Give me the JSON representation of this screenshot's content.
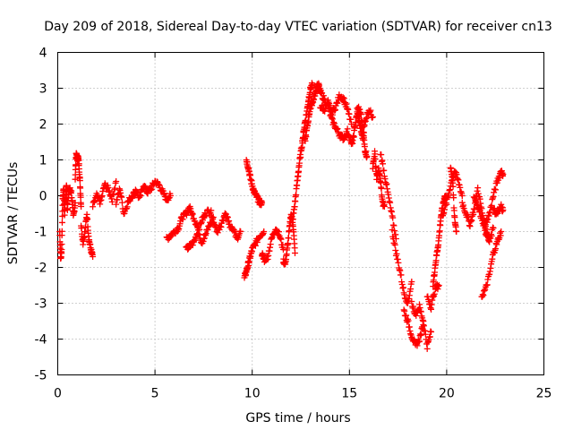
{
  "chart_data": {
    "type": "scatter",
    "title": "Day 209 of 2018, Sidereal Day-to-day VTEC variation (SDTVAR) for receiver cn13",
    "xlabel": "GPS time / hours",
    "ylabel": "SDTVAR / TECUs",
    "xlim": [
      0,
      25
    ],
    "ylim": [
      -5,
      4
    ],
    "xticks": [
      0,
      5,
      10,
      15,
      20,
      25
    ],
    "yticks": [
      -5,
      -4,
      -3,
      -2,
      -1,
      0,
      1,
      2,
      3,
      4
    ],
    "grid": true,
    "marker": "plus",
    "series_color": "#ff0000",
    "series": [
      {
        "name": "SDTVAR",
        "segments": [
          {
            "x": [
              0.1,
              0.15,
              0.2,
              0.25,
              0.3,
              0.35,
              0.4,
              0.45,
              0.5
            ],
            "y": [
              -1.0,
              -1.8,
              -1.5,
              -0.2,
              0.2,
              -0.5,
              0.0,
              0.3,
              -0.4
            ]
          },
          {
            "x": [
              0.5,
              0.6,
              0.7,
              0.8,
              0.9
            ],
            "y": [
              -0.3,
              0.2,
              0.1,
              -0.6,
              -0.2
            ]
          },
          {
            "x": [
              0.9,
              0.95,
              1.0,
              1.05,
              1.1,
              1.15,
              1.2
            ],
            "y": [
              0.5,
              1.2,
              1.0,
              1.1,
              0.8,
              0.3,
              -0.3
            ]
          },
          {
            "x": [
              1.2,
              1.3,
              1.4,
              1.5,
              1.6,
              1.7,
              1.8
            ],
            "y": [
              -0.8,
              -1.3,
              -1.0,
              -0.5,
              -1.2,
              -1.5,
              -1.7
            ]
          },
          {
            "x": [
              1.8,
              2.0,
              2.2,
              2.4,
              2.6,
              2.8,
              3.0
            ],
            "y": [
              -0.3,
              0.0,
              -0.2,
              0.3,
              0.2,
              -0.1,
              0.4
            ]
          },
          {
            "x": [
              3.0,
              3.2,
              3.4,
              3.6,
              3.8,
              4.0
            ],
            "y": [
              -0.2,
              0.2,
              -0.5,
              -0.2,
              0.0,
              0.1
            ]
          },
          {
            "x": [
              4.0,
              4.2,
              4.4,
              4.6,
              4.8,
              5.0,
              5.2,
              5.4,
              5.6,
              5.8
            ],
            "y": [
              0.2,
              -0.1,
              0.3,
              0.1,
              0.2,
              0.4,
              0.3,
              0.1,
              -0.1,
              0.0
            ]
          },
          {
            "x": [
              5.6,
              5.8,
              6.0,
              6.2,
              6.4,
              6.6,
              6.8
            ],
            "y": [
              -1.2,
              -1.1,
              -1.0,
              -0.9,
              -0.6,
              -0.5,
              -0.3
            ]
          },
          {
            "x": [
              6.8,
              7.0,
              7.2,
              7.4,
              7.6,
              7.8,
              8.0,
              8.2,
              8.4,
              8.6,
              8.8
            ],
            "y": [
              -0.4,
              -0.6,
              -0.9,
              -1.3,
              -1.1,
              -0.8,
              -0.7,
              -1.0,
              -0.8,
              -0.5,
              -0.7
            ]
          },
          {
            "x": [
              6.6,
              6.8,
              7.0,
              7.2,
              7.4,
              7.6,
              7.8,
              8.0
            ],
            "y": [
              -1.5,
              -1.4,
              -1.3,
              -1.0,
              -0.7,
              -0.5,
              -0.4,
              -0.6
            ]
          },
          {
            "x": [
              8.8,
              9.0,
              9.2,
              9.4
            ],
            "y": [
              -0.8,
              -0.9,
              -1.2,
              -1.0
            ]
          },
          {
            "x": [
              9.6,
              9.7,
              9.8,
              9.9,
              10.0,
              10.2,
              10.4,
              10.6
            ],
            "y": [
              -2.3,
              -2.1,
              -1.9,
              -1.7,
              -1.5,
              -1.3,
              -1.1,
              -1.0
            ]
          },
          {
            "x": [
              9.7,
              9.8,
              9.9,
              10.0,
              10.1,
              10.2,
              10.3,
              10.4,
              10.5
            ],
            "y": [
              1.0,
              0.8,
              0.5,
              0.3,
              0.1,
              0.0,
              -0.1,
              -0.2,
              -0.2
            ]
          },
          {
            "x": [
              10.5,
              10.6,
              10.8,
              11.0,
              11.2,
              11.4,
              11.6
            ],
            "y": [
              -1.6,
              -1.8,
              -1.7,
              -1.2,
              -0.9,
              -1.1,
              -1.5
            ]
          },
          {
            "x": [
              11.6,
              11.7,
              11.8,
              11.9,
              12.0,
              12.1,
              12.2
            ],
            "y": [
              -1.8,
              -1.9,
              -1.5,
              -1.0,
              -0.5,
              -0.8,
              -1.6
            ]
          },
          {
            "x": [
              12.1,
              12.2,
              12.3,
              12.4,
              12.5,
              12.6,
              12.7,
              12.8,
              12.9,
              13.0,
              13.1
            ],
            "y": [
              -0.6,
              -0.2,
              0.3,
              0.8,
              1.2,
              1.6,
              2.0,
              2.3,
              2.7,
              3.0,
              3.1
            ]
          },
          {
            "x": [
              12.7,
              12.8,
              12.9,
              13.0,
              13.1,
              13.2,
              13.3,
              13.4,
              13.5
            ],
            "y": [
              1.5,
              1.8,
              2.2,
              2.5,
              2.6,
              2.8,
              3.0,
              3.1,
              2.9
            ]
          },
          {
            "x": [
              13.5,
              13.7,
              13.9,
              14.1,
              14.3,
              14.5,
              14.7,
              14.9,
              15.1
            ],
            "y": [
              2.5,
              2.4,
              2.6,
              2.3,
              2.5,
              2.8,
              2.7,
              2.4,
              2.0
            ]
          },
          {
            "x": [
              13.5,
              13.7,
              13.9,
              14.1,
              14.3,
              14.5,
              14.7,
              14.9,
              15.1
            ],
            "y": [
              2.9,
              2.7,
              2.5,
              2.1,
              1.9,
              1.7,
              1.6,
              1.8,
              1.5
            ]
          },
          {
            "x": [
              15.1,
              15.2,
              15.3,
              15.4,
              15.5,
              15.6,
              15.7,
              15.8,
              16.0,
              16.2
            ],
            "y": [
              1.4,
              1.6,
              2.0,
              2.3,
              2.1,
              1.8,
              1.6,
              2.1,
              2.4,
              2.2
            ]
          },
          {
            "x": [
              15.4,
              15.5,
              15.6,
              15.7,
              15.8,
              15.9
            ],
            "y": [
              2.5,
              2.4,
              2.2,
              1.8,
              1.3,
              1.1
            ]
          },
          {
            "x": [
              16.2,
              16.3,
              16.4,
              16.5,
              16.6,
              16.7,
              16.8
            ],
            "y": [
              0.8,
              1.2,
              0.5,
              0.7,
              0.4,
              -0.2,
              -0.3
            ]
          },
          {
            "x": [
              16.6,
              16.8,
              17.0,
              17.2,
              17.4
            ],
            "y": [
              1.2,
              0.6,
              0.0,
              -0.6,
              -1.2
            ]
          },
          {
            "x": [
              17.2,
              17.4,
              17.6,
              17.8,
              18.0,
              18.2
            ],
            "y": [
              -1.0,
              -1.6,
              -2.1,
              -2.7,
              -3.0,
              -2.4
            ]
          },
          {
            "x": [
              17.8,
              18.0,
              18.2,
              18.4,
              18.6,
              18.8
            ],
            "y": [
              -3.2,
              -3.5,
              -3.9,
              -4.2,
              -4.0,
              -3.6
            ]
          },
          {
            "x": [
              18.2,
              18.4,
              18.6,
              18.8,
              19.0,
              19.2
            ],
            "y": [
              -3.0,
              -3.3,
              -3.1,
              -3.5,
              -4.2,
              -3.8
            ]
          },
          {
            "x": [
              19.0,
              19.2,
              19.4,
              19.6
            ],
            "y": [
              -2.8,
              -3.1,
              -2.6,
              -2.5
            ]
          },
          {
            "x": [
              19.3,
              19.4,
              19.5,
              19.6,
              19.7,
              19.8,
              19.9,
              20.0
            ],
            "y": [
              -2.5,
              -2.0,
              -1.6,
              -1.2,
              -0.6,
              -0.3,
              0.0,
              -0.1
            ]
          },
          {
            "x": [
              19.8,
              20.0,
              20.2,
              20.4,
              20.6,
              20.8
            ],
            "y": [
              -0.5,
              -0.2,
              0.3,
              0.7,
              0.4,
              0.0
            ]
          },
          {
            "x": [
              20.2,
              20.3,
              20.4,
              20.5
            ],
            "y": [
              0.8,
              0.5,
              -0.6,
              -1.0
            ]
          },
          {
            "x": [
              20.8,
              21.0,
              21.2,
              21.4,
              21.6,
              21.8,
              22.0,
              22.2
            ],
            "y": [
              -0.2,
              -0.5,
              -0.8,
              -0.4,
              0.2,
              -0.4,
              -0.9,
              -1.2
            ]
          },
          {
            "x": [
              21.4,
              21.6,
              21.8,
              22.0,
              22.2,
              22.4
            ],
            "y": [
              0.0,
              -0.3,
              -0.6,
              -1.0,
              -1.3,
              -0.9
            ]
          },
          {
            "x": [
              21.8,
              22.0,
              22.2,
              22.4,
              22.6,
              22.8
            ],
            "y": [
              -2.8,
              -2.6,
              -2.2,
              -1.6,
              -1.3,
              -1.0
            ]
          },
          {
            "x": [
              22.0,
              22.2,
              22.4,
              22.6,
              22.8,
              22.9
            ],
            "y": [
              -0.8,
              -0.5,
              0.0,
              0.4,
              0.7,
              0.6
            ]
          },
          {
            "x": [
              22.4,
              22.6,
              22.8,
              22.9
            ],
            "y": [
              -0.4,
              -0.5,
              -0.3,
              -0.4
            ]
          }
        ]
      }
    ]
  }
}
